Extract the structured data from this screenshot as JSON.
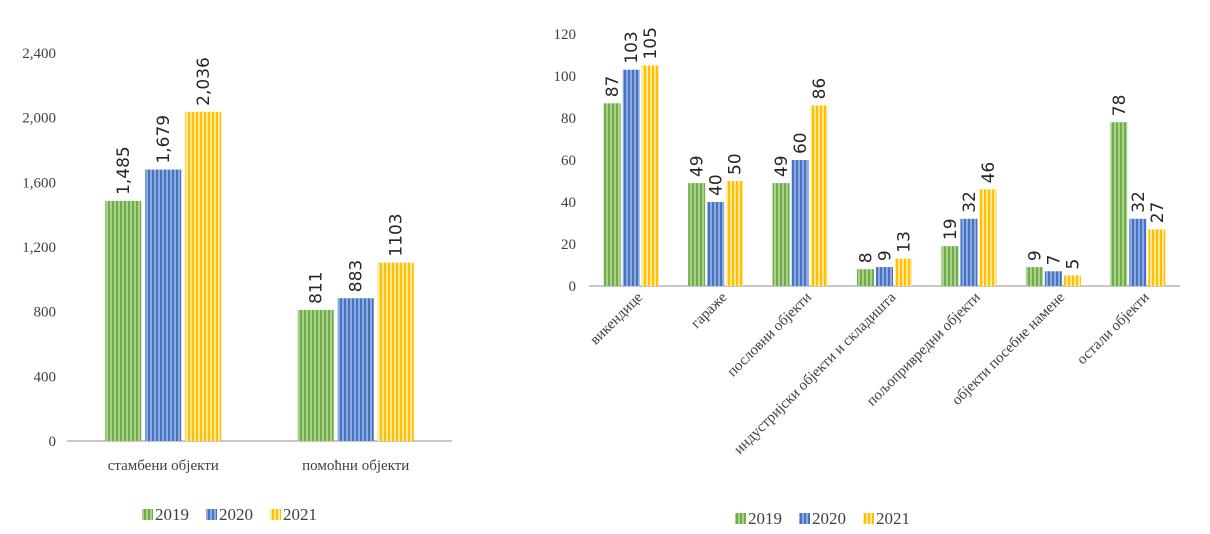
{
  "chart_data": [
    {
      "type": "bar",
      "categories": [
        "стамбени објекти",
        "помоћни објекти"
      ],
      "series": [
        {
          "name": "2019",
          "values": [
            1485,
            811
          ],
          "labels": [
            "1,485",
            "811"
          ]
        },
        {
          "name": "2020",
          "values": [
            1679,
            883
          ],
          "labels": [
            "1,679",
            "883"
          ]
        },
        {
          "name": "2021",
          "values": [
            2036,
            1103
          ],
          "labels": [
            "2,036",
            "1103"
          ]
        }
      ],
      "ylim": [
        0,
        2400
      ],
      "yticks": [
        "0",
        "400",
        "800",
        "1,200",
        "1,600",
        "2,000",
        "2,400"
      ],
      "legend_position": "bottom",
      "grid": false
    },
    {
      "type": "bar",
      "categories": [
        "викендице",
        "гараже",
        "пословни објекти",
        "индустријски објекти и складишта",
        "пољопривредни објекти",
        "објекти посебне намене",
        "остали објекти"
      ],
      "series": [
        {
          "name": "2019",
          "values": [
            87,
            49,
            49,
            8,
            19,
            9,
            78
          ],
          "labels": [
            "87",
            "49",
            "49",
            "8",
            "19",
            "9",
            "78"
          ]
        },
        {
          "name": "2020",
          "values": [
            103,
            40,
            60,
            9,
            32,
            7,
            32
          ],
          "labels": [
            "103",
            "40",
            "60",
            "9",
            "32",
            "7",
            "32"
          ]
        },
        {
          "name": "2021",
          "values": [
            105,
            50,
            86,
            13,
            46,
            5,
            27
          ],
          "labels": [
            "105",
            "50",
            "86",
            "13",
            "46",
            "5",
            "27"
          ]
        }
      ],
      "ylim": [
        0,
        120
      ],
      "yticks": [
        "0",
        "20",
        "40",
        "60",
        "80",
        "100",
        "120"
      ],
      "legend_position": "bottom",
      "grid": false
    }
  ],
  "colors": {
    "2019": {
      "base": "#70ad47",
      "stripe": "#a9d18e"
    },
    "2020": {
      "base": "#4472c4",
      "stripe": "#8faadc"
    },
    "2021": {
      "base": "#ffc000",
      "stripe": "#ffe699"
    }
  }
}
